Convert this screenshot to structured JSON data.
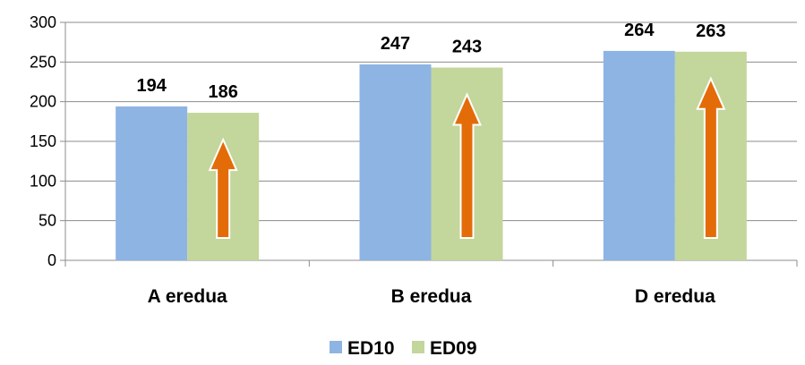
{
  "chart_data": {
    "type": "bar",
    "categories": [
      "A eredua",
      "B eredua",
      "D eredua"
    ],
    "series": [
      {
        "name": "ED10",
        "values": [
          194,
          247,
          264
        ],
        "color": "#8EB4E3"
      },
      {
        "name": "ED09",
        "values": [
          186,
          243,
          263
        ],
        "color": "#C3D69B"
      }
    ],
    "ylim": [
      0,
      300
    ],
    "yticks": [
      0,
      50,
      100,
      150,
      200,
      250,
      300
    ],
    "grid": true,
    "legend": "bottom",
    "data_labels": true,
    "annotations": "orange upward arrow inside each ED09 bar",
    "arrow_color": "#E36C09"
  }
}
